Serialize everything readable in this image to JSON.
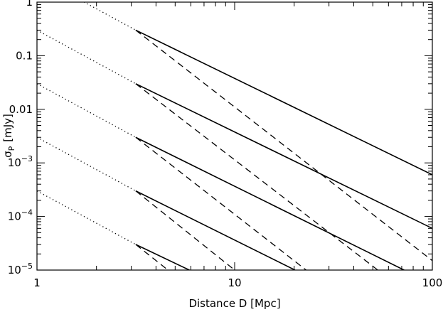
{
  "chart_data": {
    "type": "line",
    "title": "",
    "xlabel": "Distance D  [Mpc]",
    "ylabel": {
      "main": "σ",
      "sub": "P",
      "unit": "[mJy]"
    },
    "x_scale": "log",
    "y_scale": "log",
    "xlim": [
      1,
      100
    ],
    "ylim": [
      1e-05,
      1
    ],
    "grid": false,
    "x_ticks": [
      {
        "value": 1,
        "label": "1"
      },
      {
        "value": 10,
        "label": "10"
      },
      {
        "value": 100,
        "label": "100"
      }
    ],
    "y_ticks": [
      {
        "value": 1e-05,
        "base": "10",
        "exp": "−5"
      },
      {
        "value": 0.0001,
        "base": "10",
        "exp": "−4"
      },
      {
        "value": 0.001,
        "base": "10",
        "exp": "−3"
      },
      {
        "value": 0.01,
        "label": "0.01"
      },
      {
        "value": 0.1,
        "label": "0.1"
      },
      {
        "value": 1,
        "label": "1"
      }
    ],
    "series": [
      {
        "style": "dotted",
        "x": [
          1,
          3.16
        ],
        "y": [
          3.0,
          0.3
        ]
      },
      {
        "style": "dotted",
        "x": [
          1,
          3.16
        ],
        "y": [
          0.3,
          0.03
        ]
      },
      {
        "style": "dotted",
        "x": [
          1,
          3.16
        ],
        "y": [
          0.03,
          0.003
        ]
      },
      {
        "style": "dotted",
        "x": [
          1,
          3.16
        ],
        "y": [
          0.003,
          0.0003
        ]
      },
      {
        "style": "dotted",
        "x": [
          1,
          3.16
        ],
        "y": [
          0.0003,
          3e-05
        ]
      },
      {
        "style": "solid",
        "x": [
          3.16,
          100
        ],
        "y": [
          0.3,
          0.0006
        ]
      },
      {
        "style": "solid",
        "x": [
          3.16,
          100
        ],
        "y": [
          0.03,
          6e-05
        ]
      },
      {
        "style": "solid",
        "x": [
          3.16,
          72
        ],
        "y": [
          0.003,
          1e-05
        ]
      },
      {
        "style": "solid",
        "x": [
          3.16,
          20.2
        ],
        "y": [
          0.0003,
          1e-05
        ]
      },
      {
        "style": "solid",
        "x": [
          3.16,
          5.9
        ],
        "y": [
          3e-05,
          1e-05
        ]
      },
      {
        "style": "dashed",
        "x": [
          3.16,
          100
        ],
        "y": [
          0.3,
          1.5e-05
        ]
      },
      {
        "style": "dashed",
        "x": [
          3.16,
          53
        ],
        "y": [
          0.03,
          1e-05
        ]
      },
      {
        "style": "dashed",
        "x": [
          3.16,
          23
        ],
        "y": [
          0.003,
          1e-05
        ]
      },
      {
        "style": "dashed",
        "x": [
          3.16,
          10
        ],
        "y": [
          0.0003,
          1e-05
        ]
      },
      {
        "style": "dashed",
        "x": [
          3.16,
          4.6
        ],
        "y": [
          3e-05,
          1e-05
        ]
      }
    ]
  }
}
